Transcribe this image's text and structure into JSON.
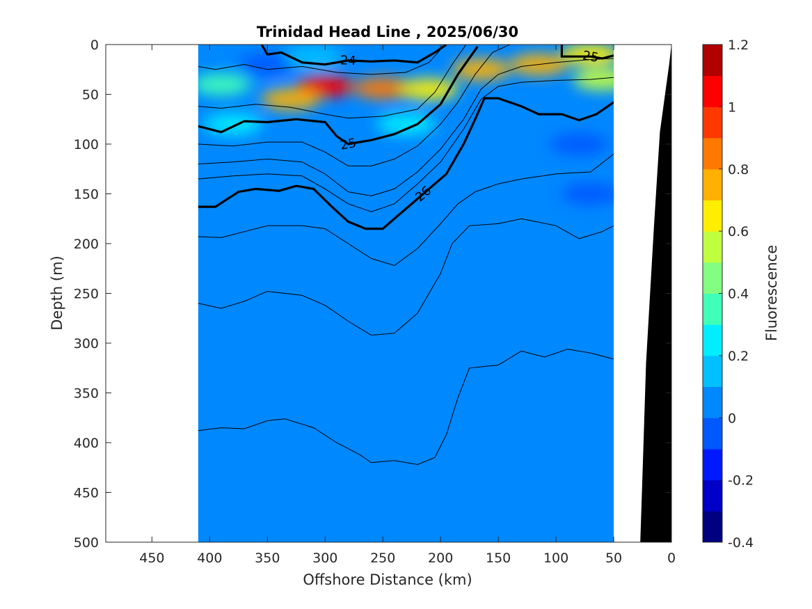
{
  "chart_data": {
    "type": "heatmap",
    "title": "Trinidad Head Line , 2025/06/30",
    "xlabel": "Offshore Distance (km)",
    "ylabel": "Depth (m)",
    "colorbar_label": "Fluorescence",
    "xlim": [
      490,
      0
    ],
    "ylim": [
      500,
      0
    ],
    "x_reversed": true,
    "y_reversed": true,
    "x_ticks": [
      450,
      400,
      350,
      300,
      250,
      200,
      150,
      100,
      50,
      0
    ],
    "y_ticks": [
      0,
      50,
      100,
      150,
      200,
      250,
      300,
      350,
      400,
      450,
      500
    ],
    "data_x_range": [
      410,
      50
    ],
    "colorbar": {
      "min": -0.4,
      "max": 1.2,
      "ticks": [
        1.2,
        1,
        0.8,
        0.6,
        0.4,
        0.2,
        0,
        -0.2,
        -0.4
      ],
      "levels": [
        -0.4,
        -0.3,
        -0.2,
        -0.1,
        0,
        0.1,
        0.2,
        0.3,
        0.4,
        0.5,
        0.6,
        0.7,
        0.8,
        0.9,
        1.0,
        1.1,
        1.2
      ],
      "colors": [
        "#000080",
        "#0000c8",
        "#0019ff",
        "#0059ff",
        "#0088ff",
        "#00c0ff",
        "#00eeff",
        "#40ffb8",
        "#80ff80",
        "#c0ff40",
        "#ffee00",
        "#ffb000",
        "#ff7800",
        "#ff3800",
        "#ff0000",
        "#b00000"
      ]
    },
    "background_level": 0.05,
    "fluorescence_features": [
      {
        "x": 300,
        "y": 42,
        "value": 1.05
      },
      {
        "x": 330,
        "y": 55,
        "value": 0.75
      },
      {
        "x": 250,
        "y": 44,
        "value": 0.8
      },
      {
        "x": 210,
        "y": 45,
        "value": 0.6
      },
      {
        "x": 165,
        "y": 25,
        "value": 0.7
      },
      {
        "x": 115,
        "y": 20,
        "value": 0.75
      },
      {
        "x": 70,
        "y": 10,
        "value": 0.6
      },
      {
        "x": 60,
        "y": 35,
        "value": 0.55
      },
      {
        "x": 390,
        "y": 40,
        "value": 0.35
      },
      {
        "x": 350,
        "y": 20,
        "value": -0.1
      },
      {
        "x": 310,
        "y": 12,
        "value": 0.15
      },
      {
        "x": 80,
        "y": 100,
        "value": -0.08
      },
      {
        "x": 70,
        "y": 150,
        "value": -0.05
      },
      {
        "x": 380,
        "y": 80,
        "value": 0.25
      },
      {
        "x": 230,
        "y": 80,
        "value": 0.2
      }
    ],
    "contours": [
      {
        "level": "",
        "bold": false,
        "points": [
          [
            410,
            22
          ],
          [
            395,
            25
          ],
          [
            370,
            20
          ],
          [
            350,
            25
          ],
          [
            320,
            22
          ],
          [
            290,
            28
          ],
          [
            260,
            30
          ],
          [
            230,
            28
          ],
          [
            210,
            18
          ],
          [
            200,
            5
          ]
        ]
      },
      {
        "level": "24",
        "bold": true,
        "points": [
          [
            355,
            0
          ],
          [
            350,
            10
          ],
          [
            338,
            8
          ],
          [
            320,
            18
          ],
          [
            300,
            20
          ],
          [
            280,
            16
          ],
          [
            260,
            17
          ],
          [
            240,
            16
          ],
          [
            220,
            18
          ],
          [
            205,
            8
          ],
          [
            195,
            0
          ]
        ]
      },
      {
        "level": "25",
        "bold": true,
        "points": [
          [
            410,
            82
          ],
          [
            390,
            88
          ],
          [
            370,
            77
          ],
          [
            350,
            78
          ],
          [
            325,
            75
          ],
          [
            300,
            78
          ],
          [
            290,
            92
          ],
          [
            280,
            100
          ],
          [
            260,
            96
          ],
          [
            240,
            90
          ],
          [
            220,
            80
          ],
          [
            200,
            60
          ],
          [
            185,
            30
          ],
          [
            168,
            2
          ]
        ]
      },
      {
        "level": "",
        "bold": false,
        "points": [
          [
            410,
            62
          ],
          [
            390,
            64
          ],
          [
            360,
            60
          ],
          [
            330,
            63
          ],
          [
            300,
            70
          ],
          [
            280,
            74
          ],
          [
            250,
            72
          ],
          [
            220,
            65
          ],
          [
            205,
            48
          ],
          [
            190,
            20
          ],
          [
            178,
            0
          ]
        ]
      },
      {
        "level": "",
        "bold": false,
        "points": [
          [
            410,
            100
          ],
          [
            380,
            102
          ],
          [
            350,
            98
          ],
          [
            320,
            98
          ],
          [
            300,
            108
          ],
          [
            280,
            122
          ],
          [
            260,
            122
          ],
          [
            240,
            115
          ],
          [
            220,
            102
          ],
          [
            200,
            80
          ],
          [
            185,
            58
          ],
          [
            170,
            30
          ],
          [
            155,
            8
          ],
          [
            140,
            0
          ]
        ]
      },
      {
        "level": "",
        "bold": false,
        "points": [
          [
            410,
            120
          ],
          [
            380,
            118
          ],
          [
            350,
            115
          ],
          [
            320,
            118
          ],
          [
            300,
            130
          ],
          [
            280,
            148
          ],
          [
            260,
            152
          ],
          [
            240,
            145
          ],
          [
            220,
            128
          ],
          [
            200,
            105
          ],
          [
            180,
            75
          ],
          [
            165,
            45
          ],
          [
            150,
            30
          ],
          [
            130,
            22
          ],
          [
            100,
            18
          ],
          [
            70,
            15
          ],
          [
            50,
            14
          ]
        ]
      },
      {
        "level": "",
        "bold": false,
        "points": [
          [
            410,
            135
          ],
          [
            380,
            132
          ],
          [
            350,
            130
          ],
          [
            320,
            132
          ],
          [
            300,
            145
          ],
          [
            280,
            160
          ],
          [
            260,
            168
          ],
          [
            240,
            160
          ],
          [
            220,
            140
          ],
          [
            200,
            118
          ],
          [
            180,
            85
          ],
          [
            165,
            55
          ],
          [
            150,
            42
          ],
          [
            130,
            38
          ],
          [
            100,
            36
          ],
          [
            70,
            35
          ],
          [
            50,
            33
          ]
        ]
      },
      {
        "level": "26",
        "bold": true,
        "points": [
          [
            410,
            163
          ],
          [
            395,
            163
          ],
          [
            375,
            148
          ],
          [
            360,
            145
          ],
          [
            340,
            147
          ],
          [
            325,
            142
          ],
          [
            310,
            145
          ],
          [
            295,
            162
          ],
          [
            280,
            178
          ],
          [
            265,
            185
          ],
          [
            250,
            185
          ],
          [
            235,
            170
          ],
          [
            215,
            150
          ],
          [
            195,
            130
          ],
          [
            180,
            100
          ],
          [
            170,
            75
          ],
          [
            162,
            54
          ],
          [
            150,
            54
          ],
          [
            130,
            62
          ],
          [
            115,
            70
          ],
          [
            95,
            70
          ],
          [
            80,
            76
          ],
          [
            65,
            70
          ],
          [
            50,
            58
          ]
        ]
      },
      {
        "level": "25",
        "bold": true,
        "points": [
          [
            95,
            0
          ],
          [
            95,
            12
          ],
          [
            85,
            12
          ],
          [
            70,
            12
          ],
          [
            60,
            14
          ],
          [
            50,
            11
          ]
        ]
      },
      {
        "level": "",
        "bold": false,
        "points": [
          [
            410,
            193
          ],
          [
            390,
            194
          ],
          [
            370,
            188
          ],
          [
            350,
            182
          ],
          [
            320,
            182
          ],
          [
            300,
            185
          ],
          [
            280,
            200
          ],
          [
            260,
            215
          ],
          [
            240,
            222
          ],
          [
            220,
            205
          ],
          [
            200,
            180
          ],
          [
            185,
            160
          ],
          [
            170,
            148
          ],
          [
            150,
            140
          ],
          [
            130,
            135
          ],
          [
            100,
            130
          ],
          [
            70,
            128
          ],
          [
            50,
            110
          ]
        ]
      },
      {
        "level": "",
        "bold": false,
        "points": [
          [
            410,
            260
          ],
          [
            390,
            265
          ],
          [
            370,
            258
          ],
          [
            350,
            248
          ],
          [
            320,
            252
          ],
          [
            300,
            262
          ],
          [
            280,
            278
          ],
          [
            260,
            292
          ],
          [
            240,
            290
          ],
          [
            220,
            270
          ],
          [
            200,
            230
          ],
          [
            190,
            200
          ],
          [
            175,
            182
          ],
          [
            150,
            180
          ],
          [
            130,
            175
          ],
          [
            100,
            182
          ],
          [
            80,
            195
          ],
          [
            60,
            188
          ],
          [
            50,
            182
          ]
        ]
      },
      {
        "level": "",
        "bold": false,
        "points": [
          [
            410,
            388
          ],
          [
            390,
            385
          ],
          [
            370,
            386
          ],
          [
            350,
            378
          ],
          [
            335,
            376
          ],
          [
            310,
            385
          ],
          [
            290,
            400
          ],
          [
            270,
            412
          ],
          [
            260,
            420
          ],
          [
            240,
            418
          ],
          [
            220,
            422
          ],
          [
            205,
            415
          ],
          [
            195,
            392
          ],
          [
            185,
            355
          ],
          [
            175,
            325
          ],
          [
            150,
            322
          ],
          [
            130,
            308
          ],
          [
            110,
            314
          ],
          [
            90,
            306
          ],
          [
            70,
            310
          ],
          [
            50,
            316
          ]
        ]
      }
    ],
    "bathymetry": [
      [
        0,
        0
      ],
      [
        2,
        20
      ],
      [
        10,
        88
      ],
      [
        15,
        180
      ],
      [
        22,
        320
      ],
      [
        25,
        430
      ],
      [
        27,
        500
      ],
      [
        0,
        500
      ]
    ],
    "grid": false,
    "legend": "none"
  }
}
